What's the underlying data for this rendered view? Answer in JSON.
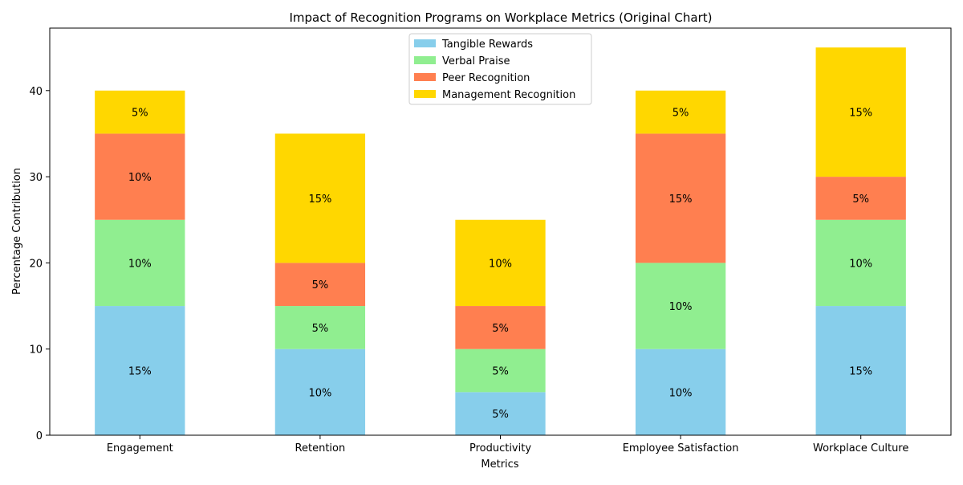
{
  "chart_data": {
    "type": "bar",
    "stacked": true,
    "title": "Impact of Recognition Programs on Workplace Metrics (Original Chart)",
    "xlabel": "Metrics",
    "ylabel": "Percentage Contribution",
    "ylim": [
      0,
      47.25
    ],
    "yticks": [
      0,
      10,
      20,
      30,
      40
    ],
    "categories": [
      "Engagement",
      "Retention",
      "Productivity",
      "Employee Satisfaction",
      "Workplace Culture"
    ],
    "series": [
      {
        "name": "Tangible Rewards",
        "color": "#87ceeb",
        "values": [
          15,
          10,
          5,
          10,
          15
        ]
      },
      {
        "name": "Verbal Praise",
        "color": "#90ee90",
        "values": [
          10,
          5,
          5,
          10,
          10
        ]
      },
      {
        "name": "Peer Recognition",
        "color": "#ff7f50",
        "values": [
          10,
          5,
          5,
          15,
          5
        ]
      },
      {
        "name": "Management Recognition",
        "color": "#ffd700",
        "values": [
          5,
          15,
          10,
          5,
          15
        ]
      }
    ],
    "label_suffix": "%",
    "grid": false,
    "legend_position": "top-center"
  }
}
